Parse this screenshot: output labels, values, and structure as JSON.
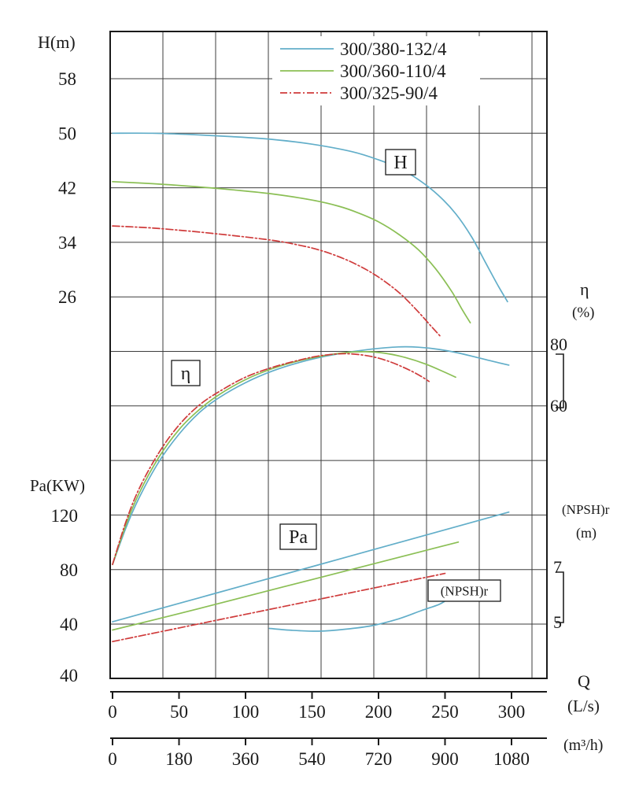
{
  "title_labels": {
    "h_axis": "H(m)",
    "pa_axis": "Pa(KW)",
    "eta_symbol": "η",
    "eta_unit": "(%)",
    "npsh": "(NPSH)r",
    "npsh_unit": "(m)",
    "q": "Q",
    "q_unit_ls": "(L/s)",
    "q_unit_m3h": "(m³/h)"
  },
  "chart_data": {
    "type": "line",
    "title": "Pump performance curves (H, η, Pa, (NPSH)r vs Q)",
    "legend": [
      {
        "label": "300/380-132/4",
        "color": "#62aec9",
        "line_style": "solid"
      },
      {
        "label": "300/360-110/4",
        "color": "#8bbf55",
        "line_style": "solid"
      },
      {
        "label": "300/325-90/4",
        "color": "#cf3b3b",
        "line_style": "dash-dot"
      }
    ],
    "axes": {
      "q_ls": {
        "title": "Q (L/s)",
        "ticks": [
          0,
          50,
          100,
          150,
          200,
          250,
          300
        ],
        "range": [
          0,
          328
        ]
      },
      "q_m3h": {
        "title": "Q (m³/h)",
        "ticks": [
          0,
          180,
          360,
          540,
          720,
          900,
          1080
        ]
      },
      "head": {
        "title": "H(m)",
        "ticks": [
          58,
          50,
          42,
          34,
          26
        ],
        "range": [
          18,
          60
        ]
      },
      "power": {
        "title": "Pa(KW)",
        "ticks": [
          120,
          80,
          40,
          40
        ],
        "range": [
          20,
          130
        ]
      },
      "efficiency": {
        "title": "η (%)",
        "ticks": [
          80,
          60
        ],
        "range": [
          0,
          85
        ]
      },
      "npshr": {
        "title": "(NPSH)r (m)",
        "ticks": [
          7,
          5
        ],
        "range": [
          4,
          8
        ]
      }
    },
    "annotations": {
      "h": "H",
      "eta": "η",
      "pa": "Pa",
      "npsh": "(NPSH)r"
    },
    "series": {
      "H": [
        {
          "model": "300/380-132/4",
          "points": [
            [
              0,
              50
            ],
            [
              30,
              50
            ],
            [
              60,
              49.8
            ],
            [
              90,
              49.5
            ],
            [
              120,
              49.1
            ],
            [
              150,
              48.4
            ],
            [
              180,
              47.3
            ],
            [
              200,
              46.1
            ],
            [
              215,
              44.9
            ],
            [
              230,
              43.2
            ],
            [
              245,
              40.9
            ],
            [
              258,
              38.2
            ],
            [
              270,
              34.8
            ],
            [
              280,
              31.2
            ],
            [
              290,
              27.6
            ],
            [
              297,
              25.3
            ]
          ]
        },
        {
          "model": "300/360-110/4",
          "points": [
            [
              0,
              42.9
            ],
            [
              30,
              42.6
            ],
            [
              60,
              42.2
            ],
            [
              90,
              41.7
            ],
            [
              120,
              41.1
            ],
            [
              150,
              40.2
            ],
            [
              170,
              39.3
            ],
            [
              185,
              38.3
            ],
            [
              200,
              37.0
            ],
            [
              215,
              35.2
            ],
            [
              230,
              32.9
            ],
            [
              243,
              30.1
            ],
            [
              255,
              26.8
            ],
            [
              263,
              24.1
            ],
            [
              269,
              22.2
            ]
          ]
        },
        {
          "model": "300/325-90/4",
          "points": [
            [
              0,
              36.4
            ],
            [
              30,
              36.1
            ],
            [
              60,
              35.6
            ],
            [
              90,
              35.0
            ],
            [
              120,
              34.3
            ],
            [
              140,
              33.6
            ],
            [
              155,
              32.9
            ],
            [
              170,
              31.9
            ],
            [
              185,
              30.6
            ],
            [
              200,
              28.9
            ],
            [
              215,
              26.7
            ],
            [
              228,
              24.2
            ],
            [
              240,
              21.6
            ],
            [
              247,
              20.1
            ]
          ]
        }
      ],
      "eta": [
        {
          "model": "300/380-132/4",
          "points": [
            [
              0,
              8
            ],
            [
              10,
              20
            ],
            [
              20,
              30
            ],
            [
              35,
              42
            ],
            [
              50,
              51
            ],
            [
              65,
              58
            ],
            [
              80,
              63
            ],
            [
              100,
              68
            ],
            [
              120,
              71.8
            ],
            [
              140,
              74.6
            ],
            [
              160,
              76.7
            ],
            [
              180,
              78.2
            ],
            [
              200,
              79.3
            ],
            [
              215,
              79.8
            ],
            [
              230,
              79.7
            ],
            [
              245,
              79.0
            ],
            [
              260,
              77.8
            ],
            [
              275,
              76.2
            ],
            [
              290,
              74.6
            ],
            [
              298,
              73.8
            ]
          ]
        },
        {
          "model": "300/360-110/4",
          "points": [
            [
              0,
              8
            ],
            [
              10,
              21
            ],
            [
              20,
              31.5
            ],
            [
              35,
              43.5
            ],
            [
              50,
              52.5
            ],
            [
              65,
              59
            ],
            [
              80,
              64
            ],
            [
              100,
              69
            ],
            [
              120,
              72.6
            ],
            [
              140,
              75.2
            ],
            [
              160,
              77.0
            ],
            [
              175,
              77.9
            ],
            [
              190,
              78.2
            ],
            [
              205,
              77.7
            ],
            [
              220,
              76.3
            ],
            [
              235,
              74.2
            ],
            [
              248,
              71.8
            ],
            [
              258,
              69.8
            ]
          ]
        },
        {
          "model": "300/325-90/4",
          "points": [
            [
              0,
              8
            ],
            [
              10,
              22
            ],
            [
              20,
              33
            ],
            [
              35,
              45
            ],
            [
              50,
              54
            ],
            [
              65,
              60.5
            ],
            [
              80,
              65
            ],
            [
              100,
              69.8
            ],
            [
              120,
              73.0
            ],
            [
              140,
              75.4
            ],
            [
              155,
              76.8
            ],
            [
              170,
              77.5
            ],
            [
              182,
              77.4
            ],
            [
              195,
              76.6
            ],
            [
              208,
              75.0
            ],
            [
              220,
              72.8
            ],
            [
              230,
              70.6
            ],
            [
              238,
              68.4
            ]
          ]
        }
      ],
      "Pa": [
        {
          "model": "300/380-132/4",
          "points": [
            [
              0,
              42
            ],
            [
              50,
              55.5
            ],
            [
              100,
              69
            ],
            [
              150,
              82.5
            ],
            [
              200,
              96
            ],
            [
              250,
              109.5
            ],
            [
              298,
              122.5
            ]
          ]
        },
        {
          "model": "300/360-110/4",
          "points": [
            [
              0,
              36
            ],
            [
              50,
              48
            ],
            [
              100,
              60.5
            ],
            [
              150,
              73
            ],
            [
              200,
              85.5
            ],
            [
              230,
              93
            ],
            [
              260,
              100.5
            ]
          ]
        },
        {
          "model": "300/325-90/4",
          "points": [
            [
              0,
              27.5
            ],
            [
              50,
              37.5
            ],
            [
              100,
              47.5
            ],
            [
              150,
              57.5
            ],
            [
              200,
              67.5
            ],
            [
              230,
              73.5
            ],
            [
              250,
              77.5
            ]
          ]
        }
      ],
      "npsh": [
        {
          "model": "300/380-132/4",
          "points": [
            [
              118,
              4.85
            ],
            [
              135,
              4.78
            ],
            [
              155,
              4.75
            ],
            [
              175,
              4.82
            ],
            [
              195,
              4.95
            ],
            [
              215,
              5.2
            ],
            [
              232,
              5.5
            ],
            [
              245,
              5.72
            ],
            [
              250,
              5.85
            ]
          ]
        }
      ]
    }
  }
}
